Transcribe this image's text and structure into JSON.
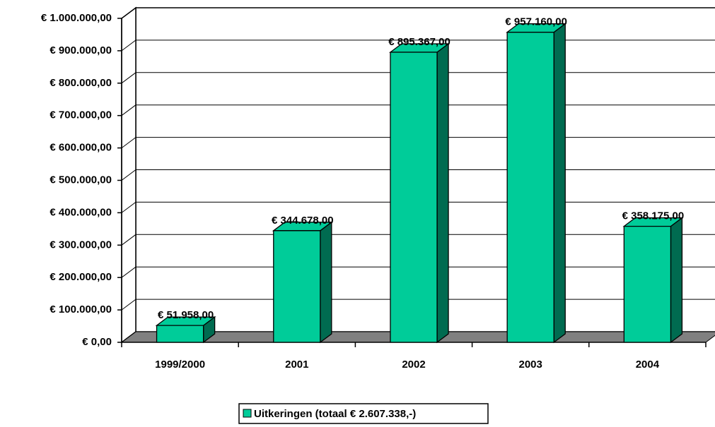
{
  "chart_data": {
    "type": "bar3d",
    "categories": [
      "1999/2000",
      "2001",
      "2002",
      "2003",
      "2004"
    ],
    "series": [
      {
        "name": "Uitkeringen (totaal € 2.607.338,-)",
        "color": "#00cc99",
        "values": [
          51958,
          344678,
          895367,
          957160,
          358175
        ],
        "value_labels": [
          "€ 51.958,00",
          "€ 344.678,00",
          "€ 895.367,00",
          "€ 957.160,00",
          "€ 358.175,00"
        ]
      }
    ],
    "ylim": [
      0,
      1000000
    ],
    "yticks": [
      {
        "value": 0,
        "label": "€ 0,00"
      },
      {
        "value": 100000,
        "label": "€ 100.000,00"
      },
      {
        "value": 200000,
        "label": "€ 200.000,00"
      },
      {
        "value": 300000,
        "label": "€ 300.000,00"
      },
      {
        "value": 400000,
        "label": "€ 400.000,00"
      },
      {
        "value": 500000,
        "label": "€ 500.000,00"
      },
      {
        "value": 600000,
        "label": "€ 600.000,00"
      },
      {
        "value": 700000,
        "label": "€ 700.000,00"
      },
      {
        "value": 800000,
        "label": "€ 800.000,00"
      },
      {
        "value": 900000,
        "label": "€ 900.000,00"
      },
      {
        "value": 1000000,
        "label": "€ 1.000.000,00"
      }
    ],
    "grid": true,
    "legend": "bottom"
  }
}
